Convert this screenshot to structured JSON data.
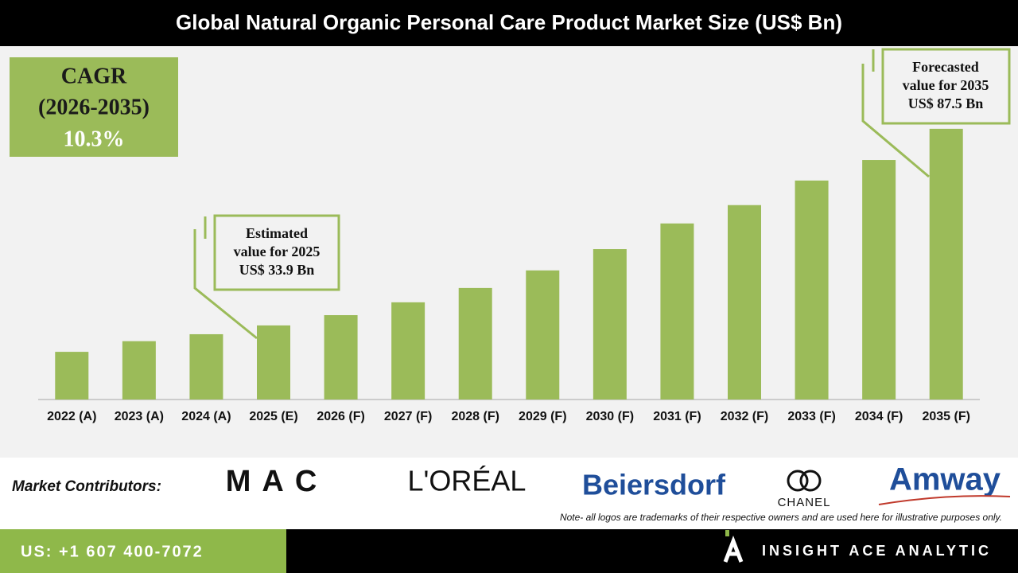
{
  "chart_data": {
    "type": "bar",
    "title": "Global Natural Organic Personal Care Product Market Size (US$ Bn)",
    "categories": [
      "2022 (A)",
      "2023 (A)",
      "2024 (A)",
      "2025 (E)",
      "2026 (F)",
      "2027 (F)",
      "2028 (F)",
      "2029 (F)",
      "2030 (F)",
      "2031 (F)",
      "2032 (F)",
      "2033 (F)",
      "2034 (F)",
      "2035 (F)"
    ],
    "values": [
      26.7,
      29.6,
      31.5,
      33.9,
      36.7,
      40.2,
      44.1,
      48.9,
      54.7,
      61.7,
      66.7,
      73.4,
      79.0,
      87.5
    ],
    "color": "#9bbb59",
    "ylim": [
      13.7,
      109.6
    ],
    "cagr": {
      "label": "CAGR",
      "period": "(2026-2035)",
      "value": "10.3%"
    },
    "callouts": [
      {
        "lines": [
          "Estimated",
          "value for 2025",
          "US$ 33.9 Bn"
        ]
      },
      {
        "lines": [
          "Forecasted",
          "value for 2035",
          "US$ 87.5 Bn"
        ]
      }
    ]
  },
  "footer": {
    "contributors_label": "Market Contributors:",
    "logos": [
      "MAC",
      "L'ORÉAL",
      "Beiersdorf",
      "CHANEL",
      "Amway"
    ],
    "note": "Note- all logos are trademarks of their respective owners and are used here for illustrative purposes only.",
    "phone": "US: +1 607 400-7072",
    "brand": "INSIGHT ACE ANALYTIC"
  }
}
